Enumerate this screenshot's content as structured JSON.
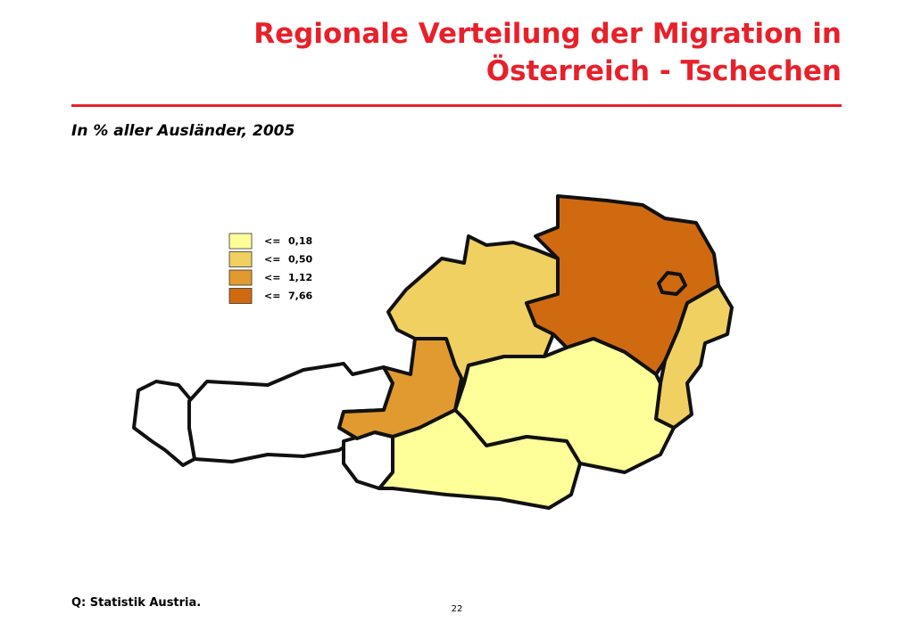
{
  "header": {
    "title_line1": "Regionale Verteilung der Migration in",
    "title_line2": "Österreich - Tschechen",
    "subtitle": "In % aller Ausländer, 2005"
  },
  "legend": {
    "items": [
      {
        "operator": "<=",
        "label": "0,18",
        "color": "#ffff99"
      },
      {
        "operator": "<=",
        "label": "0,50",
        "color": "#f0d060"
      },
      {
        "operator": "<=",
        "label": "1,12",
        "color": "#e09a30"
      },
      {
        "operator": "<=",
        "label": "7,66",
        "color": "#d06a10"
      }
    ]
  },
  "footer": {
    "source": "Q: Statistik Austria.",
    "page_number": "22"
  }
}
